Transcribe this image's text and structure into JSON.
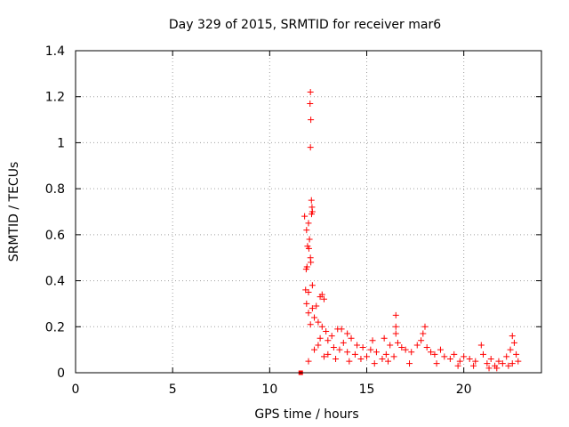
{
  "chart_data": {
    "type": "scatter",
    "title": "Day 329 of 2015, SRMTID for receiver mar6",
    "xlabel": "GPS time / hours",
    "ylabel": "SRMTID / TECUs",
    "xlim": [
      0,
      24
    ],
    "ylim": [
      0,
      1.4
    ],
    "xticks": [
      0,
      5,
      10,
      15,
      20
    ],
    "yticks": [
      0,
      0.2,
      0.4,
      0.6,
      0.8,
      1,
      1.2,
      1.4
    ],
    "ytick_labels": [
      "0",
      "0.2",
      "0.4",
      "0.6",
      "0.8",
      "1",
      "1.2",
      "1.4"
    ],
    "grid": true,
    "marker_color": "#ff0000",
    "series": [
      {
        "marker": "plus",
        "points": [
          [
            12.1,
            1.22
          ],
          [
            12.08,
            1.17
          ],
          [
            12.12,
            1.1
          ],
          [
            12.1,
            0.98
          ],
          [
            12.15,
            0.75
          ],
          [
            12.18,
            0.72
          ],
          [
            12.2,
            0.7
          ],
          [
            12.16,
            0.69
          ],
          [
            11.8,
            0.68
          ],
          [
            12.0,
            0.65
          ],
          [
            11.9,
            0.62
          ],
          [
            12.05,
            0.58
          ],
          [
            11.95,
            0.55
          ],
          [
            12.02,
            0.54
          ],
          [
            12.1,
            0.5
          ],
          [
            12.12,
            0.48
          ],
          [
            11.92,
            0.46
          ],
          [
            11.88,
            0.45
          ],
          [
            12.2,
            0.38
          ],
          [
            11.85,
            0.36
          ],
          [
            12.0,
            0.35
          ],
          [
            12.7,
            0.34
          ],
          [
            12.6,
            0.33
          ],
          [
            12.8,
            0.32
          ],
          [
            11.9,
            0.3
          ],
          [
            12.4,
            0.29
          ],
          [
            12.2,
            0.28
          ],
          [
            12.0,
            0.26
          ],
          [
            12.3,
            0.24
          ],
          [
            12.5,
            0.22
          ],
          [
            12.1,
            0.21
          ],
          [
            12.7,
            0.2
          ],
          [
            13.5,
            0.19
          ],
          [
            13.7,
            0.19
          ],
          [
            12.9,
            0.18
          ],
          [
            14.0,
            0.17
          ],
          [
            13.2,
            0.16
          ],
          [
            12.6,
            0.15
          ],
          [
            14.2,
            0.15
          ],
          [
            13.0,
            0.14
          ],
          [
            13.8,
            0.13
          ],
          [
            12.5,
            0.12
          ],
          [
            14.5,
            0.12
          ],
          [
            13.3,
            0.11
          ],
          [
            14.8,
            0.11
          ],
          [
            13.6,
            0.1
          ],
          [
            15.2,
            0.1
          ],
          [
            14.0,
            0.09
          ],
          [
            15.5,
            0.09
          ],
          [
            13.0,
            0.08
          ],
          [
            14.4,
            0.08
          ],
          [
            16.0,
            0.08
          ],
          [
            15.0,
            0.07
          ],
          [
            16.4,
            0.07
          ],
          [
            14.7,
            0.06
          ],
          [
            15.8,
            0.06
          ],
          [
            16.2,
            0.12
          ],
          [
            16.6,
            0.13
          ],
          [
            16.8,
            0.11
          ],
          [
            15.3,
            0.14
          ],
          [
            15.9,
            0.15
          ],
          [
            16.5,
            0.2
          ],
          [
            16.5,
            0.25
          ],
          [
            16.5,
            0.17
          ],
          [
            17.0,
            0.1
          ],
          [
            17.3,
            0.09
          ],
          [
            17.6,
            0.12
          ],
          [
            17.8,
            0.14
          ],
          [
            18.0,
            0.2
          ],
          [
            17.9,
            0.17
          ],
          [
            18.1,
            0.11
          ],
          [
            18.3,
            0.09
          ],
          [
            18.5,
            0.08
          ],
          [
            18.8,
            0.1
          ],
          [
            19.0,
            0.07
          ],
          [
            19.3,
            0.06
          ],
          [
            19.5,
            0.08
          ],
          [
            19.8,
            0.05
          ],
          [
            20.0,
            0.07
          ],
          [
            20.3,
            0.06
          ],
          [
            20.6,
            0.05
          ],
          [
            20.9,
            0.12
          ],
          [
            21.0,
            0.08
          ],
          [
            21.2,
            0.04
          ],
          [
            21.4,
            0.06
          ],
          [
            21.6,
            0.03
          ],
          [
            21.8,
            0.05
          ],
          [
            22.0,
            0.04
          ],
          [
            22.2,
            0.07
          ],
          [
            22.4,
            0.1
          ],
          [
            22.5,
            0.16
          ],
          [
            22.6,
            0.13
          ],
          [
            22.7,
            0.08
          ],
          [
            22.8,
            0.05
          ],
          [
            22.5,
            0.04
          ],
          [
            12.0,
            0.05
          ],
          [
            12.3,
            0.1
          ],
          [
            12.8,
            0.07
          ],
          [
            13.4,
            0.06
          ],
          [
            14.1,
            0.05
          ],
          [
            15.4,
            0.04
          ],
          [
            16.1,
            0.05
          ],
          [
            17.2,
            0.04
          ],
          [
            18.6,
            0.04
          ],
          [
            19.7,
            0.03
          ],
          [
            20.5,
            0.03
          ],
          [
            21.3,
            0.02
          ],
          [
            21.7,
            0.02
          ],
          [
            22.3,
            0.03
          ]
        ]
      },
      {
        "marker": "square",
        "points": [
          [
            11.6,
            0.0
          ]
        ]
      }
    ]
  }
}
